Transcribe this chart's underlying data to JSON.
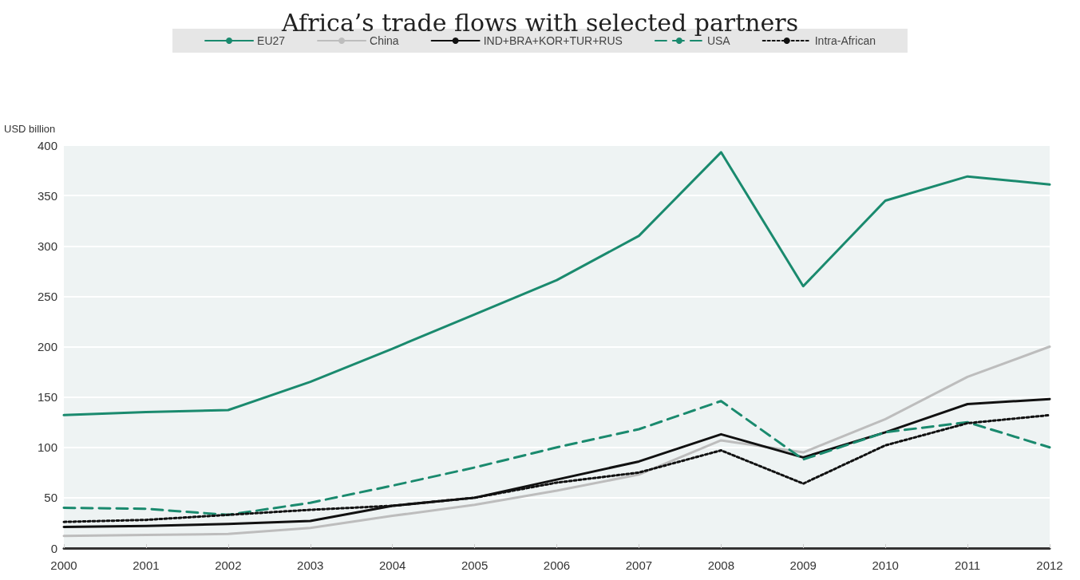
{
  "chart_data": {
    "type": "line",
    "title": "Africa’s trade flows with selected partners",
    "ylabel": "USD billion",
    "categories": [
      "2000",
      "2001",
      "2002",
      "2003",
      "2004",
      "2005",
      "2006",
      "2007",
      "2008",
      "2009",
      "2010",
      "2011",
      "2012"
    ],
    "series": [
      {
        "name": "EU27",
        "color": "#1a8a6e",
        "line_style": "solid",
        "values": [
          132,
          135,
          137,
          165,
          198,
          232,
          266,
          310,
          393,
          260,
          345,
          369,
          361
        ]
      },
      {
        "name": "China",
        "color": "#bdbdbd",
        "line_style": "solid",
        "values": [
          12,
          13,
          14,
          20,
          32,
          43,
          57,
          73,
          107,
          95,
          128,
          170,
          200
        ]
      },
      {
        "name": "IND+BRA+KOR+TUR+RUS",
        "color": "#111111",
        "line_style": "solid",
        "values": [
          21,
          22,
          24,
          27,
          42,
          50,
          68,
          86,
          113,
          90,
          115,
          143,
          148
        ]
      },
      {
        "name": "USA",
        "color": "#1a8a6e",
        "line_style": "dashed",
        "values": [
          40,
          39,
          33,
          45,
          62,
          80,
          100,
          118,
          146,
          88,
          115,
          125,
          100
        ]
      },
      {
        "name": "Intra-African",
        "color": "#111111",
        "line_style": "dotted",
        "values": [
          26,
          28,
          33,
          38,
          42,
          50,
          65,
          75,
          97,
          64,
          102,
          124,
          132
        ]
      }
    ],
    "ylim": [
      0,
      400
    ],
    "yticks": [
      0,
      50,
      100,
      150,
      200,
      250,
      300,
      350,
      400
    ],
    "grid": "y",
    "legend": "top",
    "marker": "none"
  }
}
